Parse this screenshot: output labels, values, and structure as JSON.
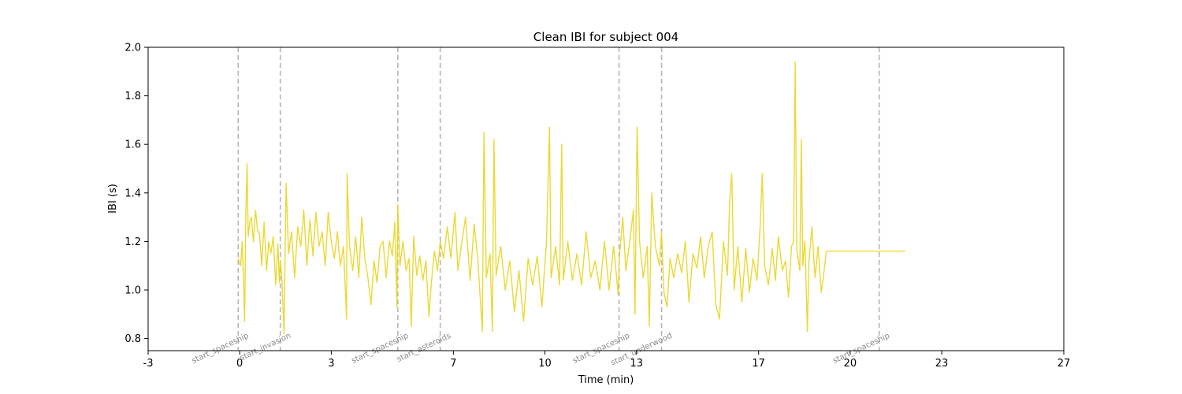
{
  "chart_data": {
    "type": "line",
    "title": "Clean IBI for subject 004",
    "xlabel": "Time (min)",
    "ylabel": "IBI (s)",
    "xlim": [
      -3,
      27
    ],
    "ylim": [
      0.75,
      2.0
    ],
    "x_ticks": [
      -3,
      0,
      3,
      7,
      10,
      13,
      17,
      20,
      23,
      27
    ],
    "x_tick_labels": [
      "-3",
      "0",
      "3",
      "7",
      "10",
      "13",
      "17",
      "20",
      "23",
      "27"
    ],
    "y_ticks": [
      0.8,
      1.0,
      1.2,
      1.4,
      1.6,
      1.8,
      2.0
    ],
    "y_tick_labels": [
      "0.8",
      "1.0",
      "1.2",
      "1.4",
      "1.6",
      "1.8",
      "2.0"
    ],
    "grid": false,
    "colors": {
      "line": "#e8d51f",
      "event_line": "#b5b5b5",
      "event_label": "#8a8a8a",
      "axes": "#000000"
    },
    "events": [
      {
        "label": "start_spaceship",
        "x": -0.05
      },
      {
        "label": "start_invasion",
        "x": 1.33
      },
      {
        "label": "start_spaceship",
        "x": 5.18
      },
      {
        "label": "start_asteroids",
        "x": 6.57
      },
      {
        "label": "start_spaceship",
        "x": 12.43
      },
      {
        "label": "start_underwood",
        "x": 13.82
      },
      {
        "label": "start_spaceship",
        "x": 20.95
      }
    ],
    "series": [
      {
        "points": [
          [
            -0.05,
            1.13
          ],
          [
            0.03,
            1.1
          ],
          [
            0.08,
            1.2
          ],
          [
            0.12,
            1.06
          ],
          [
            0.16,
            0.87
          ],
          [
            0.2,
            1.3
          ],
          [
            0.24,
            1.52
          ],
          [
            0.28,
            1.22
          ],
          [
            0.33,
            1.28
          ],
          [
            0.38,
            1.3
          ],
          [
            0.45,
            1.2
          ],
          [
            0.52,
            1.33
          ],
          [
            0.58,
            1.25
          ],
          [
            0.65,
            1.23
          ],
          [
            0.72,
            1.1
          ],
          [
            0.8,
            1.28
          ],
          [
            0.88,
            1.08
          ],
          [
            0.95,
            1.2
          ],
          [
            1.02,
            1.15
          ],
          [
            1.1,
            1.22
          ],
          [
            1.18,
            1.02
          ],
          [
            1.25,
            1.19
          ],
          [
            1.3,
            1.03
          ],
          [
            1.33,
            1.12
          ],
          [
            1.38,
            1.05
          ],
          [
            1.45,
            0.82
          ],
          [
            1.52,
            1.44
          ],
          [
            1.6,
            1.15
          ],
          [
            1.7,
            1.24
          ],
          [
            1.8,
            1.05
          ],
          [
            1.9,
            1.26
          ],
          [
            2.0,
            1.18
          ],
          [
            2.1,
            1.33
          ],
          [
            2.2,
            1.1
          ],
          [
            2.3,
            1.29
          ],
          [
            2.4,
            1.14
          ],
          [
            2.5,
            1.32
          ],
          [
            2.6,
            1.18
          ],
          [
            2.7,
            1.24
          ],
          [
            2.8,
            1.1
          ],
          [
            2.9,
            1.32
          ],
          [
            3.0,
            1.2
          ],
          [
            3.1,
            1.13
          ],
          [
            3.2,
            1.24
          ],
          [
            3.3,
            1.1
          ],
          [
            3.4,
            1.18
          ],
          [
            3.5,
            0.88
          ],
          [
            3.52,
            1.48
          ],
          [
            3.6,
            1.18
          ],
          [
            3.7,
            1.08
          ],
          [
            3.8,
            1.22
          ],
          [
            3.9,
            1.05
          ],
          [
            4.0,
            1.3
          ],
          [
            4.1,
            1.13
          ],
          [
            4.2,
            1.05
          ],
          [
            4.3,
            0.94
          ],
          [
            4.4,
            1.12
          ],
          [
            4.5,
            1.03
          ],
          [
            4.6,
            1.18
          ],
          [
            4.7,
            1.2
          ],
          [
            4.8,
            1.05
          ],
          [
            4.9,
            1.2
          ],
          [
            5.0,
            1.14
          ],
          [
            5.08,
            1.28
          ],
          [
            5.15,
            0.93
          ],
          [
            5.18,
            1.35
          ],
          [
            5.25,
            1.1
          ],
          [
            5.35,
            1.2
          ],
          [
            5.45,
            1.08
          ],
          [
            5.55,
            1.13
          ],
          [
            5.62,
            0.85
          ],
          [
            5.7,
            1.22
          ],
          [
            5.8,
            1.06
          ],
          [
            5.9,
            1.14
          ],
          [
            6.0,
            1.04
          ],
          [
            6.1,
            1.12
          ],
          [
            6.2,
            0.89
          ],
          [
            6.28,
            1.03
          ],
          [
            6.38,
            1.16
          ],
          [
            6.48,
            1.08
          ],
          [
            6.57,
            1.2
          ],
          [
            6.68,
            1.13
          ],
          [
            6.8,
            1.26
          ],
          [
            6.92,
            1.13
          ],
          [
            7.05,
            1.32
          ],
          [
            7.15,
            1.08
          ],
          [
            7.28,
            1.2
          ],
          [
            7.4,
            1.3
          ],
          [
            7.55,
            1.04
          ],
          [
            7.68,
            1.27
          ],
          [
            7.8,
            1.13
          ],
          [
            7.95,
            0.83
          ],
          [
            8.0,
            1.65
          ],
          [
            8.08,
            1.05
          ],
          [
            8.2,
            1.15
          ],
          [
            8.28,
            0.83
          ],
          [
            8.33,
            1.62
          ],
          [
            8.4,
            1.06
          ],
          [
            8.55,
            1.18
          ],
          [
            8.7,
            1.0
          ],
          [
            8.85,
            1.12
          ],
          [
            9.0,
            0.91
          ],
          [
            9.15,
            1.08
          ],
          [
            9.3,
            0.87
          ],
          [
            9.45,
            1.13
          ],
          [
            9.6,
            1.02
          ],
          [
            9.75,
            1.14
          ],
          [
            9.9,
            0.93
          ],
          [
            10.05,
            1.2
          ],
          [
            10.15,
            1.67
          ],
          [
            10.2,
            1.05
          ],
          [
            10.35,
            1.18
          ],
          [
            10.48,
            1.02
          ],
          [
            10.55,
            1.6
          ],
          [
            10.6,
            1.04
          ],
          [
            10.75,
            1.2
          ],
          [
            10.9,
            1.04
          ],
          [
            11.05,
            1.15
          ],
          [
            11.2,
            1.02
          ],
          [
            11.35,
            1.24
          ],
          [
            11.5,
            1.05
          ],
          [
            11.65,
            1.12
          ],
          [
            11.8,
            1.0
          ],
          [
            11.95,
            1.2
          ],
          [
            12.1,
            1.0
          ],
          [
            12.25,
            1.18
          ],
          [
            12.4,
            0.98
          ],
          [
            12.43,
            1.12
          ],
          [
            12.55,
            1.3
          ],
          [
            12.65,
            1.08
          ],
          [
            12.78,
            1.2
          ],
          [
            12.9,
            1.33
          ],
          [
            12.95,
            0.9
          ],
          [
            13.02,
            1.67
          ],
          [
            13.1,
            1.2
          ],
          [
            13.22,
            1.05
          ],
          [
            13.35,
            1.18
          ],
          [
            13.42,
            0.85
          ],
          [
            13.5,
            1.4
          ],
          [
            13.62,
            1.18
          ],
          [
            13.75,
            1.1
          ],
          [
            13.82,
            1.24
          ],
          [
            13.9,
            0.99
          ],
          [
            14.0,
            0.93
          ],
          [
            14.1,
            1.13
          ],
          [
            14.22,
            1.05
          ],
          [
            14.35,
            1.15
          ],
          [
            14.48,
            1.07
          ],
          [
            14.6,
            1.2
          ],
          [
            14.72,
            0.95
          ],
          [
            14.85,
            1.15
          ],
          [
            14.98,
            1.09
          ],
          [
            15.1,
            1.22
          ],
          [
            15.22,
            1.05
          ],
          [
            15.35,
            1.18
          ],
          [
            15.48,
            1.24
          ],
          [
            15.6,
            0.94
          ],
          [
            15.72,
            0.88
          ],
          [
            15.85,
            1.2
          ],
          [
            15.98,
            1.06
          ],
          [
            16.05,
            1.36
          ],
          [
            16.12,
            1.48
          ],
          [
            16.2,
            1.0
          ],
          [
            16.32,
            1.18
          ],
          [
            16.45,
            0.95
          ],
          [
            16.58,
            1.17
          ],
          [
            16.7,
            0.99
          ],
          [
            16.82,
            1.13
          ],
          [
            16.95,
            1.04
          ],
          [
            17.05,
            1.26
          ],
          [
            17.12,
            1.48
          ],
          [
            17.2,
            1.1
          ],
          [
            17.32,
            1.02
          ],
          [
            17.45,
            1.17
          ],
          [
            17.55,
            1.04
          ],
          [
            17.65,
            1.22
          ],
          [
            17.78,
            1.08
          ],
          [
            17.88,
            1.12
          ],
          [
            17.98,
            0.97
          ],
          [
            18.08,
            1.18
          ],
          [
            18.15,
            1.2
          ],
          [
            18.2,
            1.94
          ],
          [
            18.25,
            1.17
          ],
          [
            18.35,
            1.08
          ],
          [
            18.4,
            1.62
          ],
          [
            18.45,
            1.1
          ],
          [
            18.52,
            1.2
          ],
          [
            18.6,
            0.83
          ],
          [
            18.65,
            1.12
          ],
          [
            18.75,
            1.26
          ],
          [
            18.85,
            1.05
          ],
          [
            18.95,
            1.18
          ],
          [
            19.05,
            0.99
          ],
          [
            19.12,
            1.05
          ],
          [
            19.22,
            1.16
          ],
          [
            20.5,
            1.16
          ],
          [
            21.8,
            1.16
          ]
        ]
      }
    ]
  }
}
